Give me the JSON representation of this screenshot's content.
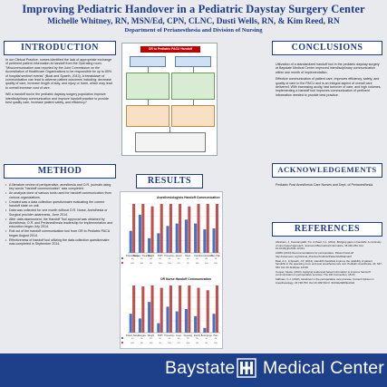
{
  "header": {
    "title": "Improving Pediatric Handover in a Pediatric Daystay Surgery Center",
    "authors": "Michelle Whitney, RN, MSN/Ed, CPN, CLNC, Dusti Wells, RN, & Kim Reed, RN",
    "department": "Department of Perianesthesia and Division of Nursing"
  },
  "introduction": {
    "heading": "INTRODUCTION",
    "paragraphs": [
      "In our Clinical Practice, nurses identified the lack of appropriate exchange of pertinent patient information at handoff from the Operating room. \"Miscommunication was reported by the Joint Commission on the Accreditation of Healthcare Organizations to be responsible for up to 80% of hospital sentinel events\" (Boat and Spaeth, 2013). A breakdown of communication can lead to adverse patient outcomes including: decrease quality of care, increase length of stay, and injury or harm, which may lead to overall increase cost of care.",
      "Will a handoff tool in the pediatric daystay surgery population improve interdisciplinary communication and improve handoff practice to provide best quality care, increase patient safety, and efficiency?"
    ]
  },
  "conclusions": {
    "heading": "CONCLUSIONS",
    "paragraphs": [
      "Utilization of a standardized handoff tool in the pediatric daystay surgery at Baystate Medical Center improved interdisciplinary communication within one month of implementation.",
      "Effective communication of patient care, improves efficiency, safety, and quality of care to the PACU and is an integral aspect of overall care delivered. With increasing acuity, fast turnover of care, and high volumes, implementing a handoff tool improves communication of pertinent information needed to provide best practice."
    ]
  },
  "method": {
    "heading": "METHOD",
    "bullets": [
      "A literature review of perioperative, anesthesia and O.R. journals using key words \"handoff communication\" was completed.",
      "An analysis done of various tools used for handoff communication from various organizations.",
      "Created was a data collection questionnaire evaluating the current handoff state on unit.",
      "Data was collected for one month without O.R. Nurse, Anesthesia or Surgical provider awareness, June 2014.",
      "After data assessment, the Handoff Tool approval was obtained by Anesthesia, O.R. and Perianesthesia leadership for implementation and education began July 2014.",
      "Roll out of the handoff communication tool from OR to Pediatric PACU began August 2014.",
      "Effectiveness of handoff tool utilizing the data collection questionnaire was completed in September 2014."
    ]
  },
  "results": {
    "heading": "RESULTS",
    "diagram_title": "OR to Pediatric PACU Handoff"
  },
  "acknowledgements": {
    "heading": "ACKNOWLEDGEMENTS",
    "text": "Pediatric Post Anesthesia Care Nurses and Dept. of Perianesthesia"
  },
  "references": {
    "heading": "REFERENCES",
    "items": [
      "Abraham, J., Kannampallil, T.G. & Patel, V.L. (2011). Bridging gaps in handoffs: A continuity of care based approach. Journal of Biomedical Informatics, 45 240-254. Doi: 10.1016/j.jbi.2011.10.011",
      "AORN (2014) Recommendations for perioperative. Patient hand-off http://www.aorn.org/Clinical_Practice/ToolKits/Patient%20Handoff",
      "Boat, A.C. & Spaeth, J.P. (2013). Handoff checklists improve the reliability of patient handoffs in the operating room and post anesthesia care unit. Pediatric Anesthesia, 23, 647-654. Doi:10.1111/pan.12199",
      "Cooper, Alecia. (2013). Applying evidenced based information to improve hand-off communication in perioperative services. The OR Connection, 18-24",
      "Kaffman, C.J. (2010). Handover in the perioperative care process. Current Opinion in Anesthesiology. 23 748-753. Doi:10.1097/ACO. 0b013e32833ec6e9"
    ]
  },
  "chart_data": [
    {
      "type": "bar",
      "title": "Anesthesiologists Handoff Communication",
      "categories": [
        "Patient Name",
        "Allergies / Reaction",
        "Weight",
        "PMH",
        "Procedure",
        "Airway",
        "Meds",
        "Fluids",
        "Complications",
        "Pain Plan"
      ],
      "series": [
        {
          "values": [
            45,
            78,
            30,
            40,
            55,
            60,
            68,
            60,
            48,
            50
          ]
        },
        {
          "values": [
            100,
            100,
            95,
            100,
            100,
            100,
            95,
            100,
            100,
            100
          ]
        }
      ],
      "ylim": [
        0,
        100
      ]
    },
    {
      "type": "bar",
      "title": "OR Nurse Handoff Communication",
      "categories": [
        "Patient Name",
        "Allergies",
        "Weight",
        "PMH",
        "Procedure",
        "Lines",
        "Dressing",
        "Family",
        "Belongings",
        "Pain"
      ],
      "series": [
        {
          "values": [
            40,
            30,
            65,
            20,
            55,
            45,
            50,
            35,
            10,
            40
          ]
        },
        {
          "values": [
            100,
            98,
            100,
            95,
            100,
            100,
            100,
            95,
            90,
            100
          ]
        }
      ],
      "ylim": [
        0,
        100
      ]
    }
  ],
  "footer": {
    "left_word": "Baystate",
    "right_words": "Medical Center"
  },
  "colors": {
    "navy": "#1e3a8a",
    "footer_blue": "#1e3f8a",
    "series_pre": "#4472c4",
    "series_post": "#c0504d",
    "diagram_red": "#c00000"
  }
}
